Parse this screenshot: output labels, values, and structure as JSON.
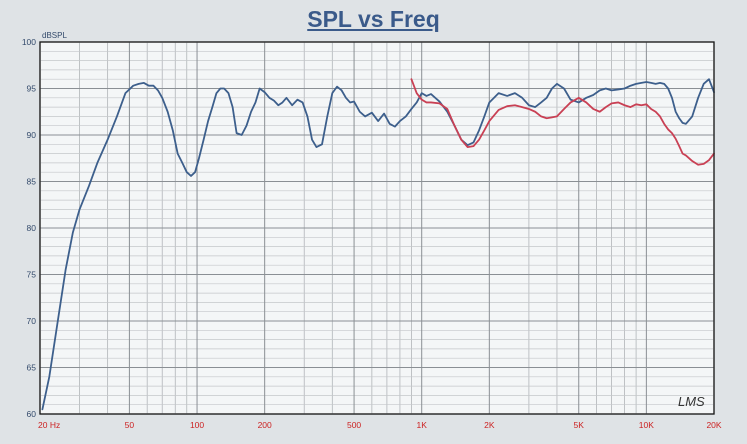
{
  "chart_data": {
    "type": "line",
    "title": "SPL vs Freq",
    "ylabel": "dBSPL",
    "xlabel": "",
    "xscale": "log",
    "xlim": [
      20,
      20000
    ],
    "ylim": [
      60,
      100
    ],
    "grid": true,
    "yticks": [
      60,
      65,
      70,
      75,
      80,
      85,
      90,
      95,
      100
    ],
    "ytick_labels": [
      "60",
      "65",
      "70",
      "75",
      "80",
      "85",
      "90",
      "95",
      "100"
    ],
    "xticks": [
      20,
      50,
      100,
      200,
      500,
      1000,
      2000,
      5000,
      10000,
      20000
    ],
    "xtick_labels": [
      "20 Hz",
      "50",
      "100",
      "200",
      "500",
      "1K",
      "2K",
      "5K",
      "10K",
      "20K"
    ],
    "watermark": "LMS",
    "series": [
      {
        "color": "#3d5f8c",
        "x": [
          20.5,
          22,
          24,
          26,
          28,
          30,
          33,
          36,
          40,
          44,
          48,
          52,
          55,
          58,
          61,
          64,
          67,
          70,
          74,
          78,
          82,
          86,
          90,
          94,
          98,
          102,
          107,
          112,
          117,
          122,
          127,
          132,
          138,
          144,
          150,
          158,
          166,
          174,
          182,
          190,
          200,
          210,
          220,
          230,
          240,
          250,
          265,
          280,
          295,
          310,
          325,
          340,
          360,
          380,
          400,
          420,
          440,
          460,
          480,
          500,
          530,
          560,
          600,
          640,
          680,
          720,
          760,
          800,
          850,
          900,
          950,
          1000,
          1050,
          1100,
          1200,
          1300,
          1400,
          1500,
          1600,
          1700,
          1800,
          1900,
          2000,
          2200,
          2400,
          2600,
          2800,
          3000,
          3200,
          3400,
          3600,
          3800,
          4000,
          4300,
          4600,
          5000,
          5400,
          5800,
          6200,
          6600,
          7000,
          7500,
          8000,
          8500,
          9000,
          9500,
          10000,
          10500,
          11000,
          11500,
          12000,
          12500,
          13000,
          13500,
          14000,
          14500,
          15000,
          16000,
          17000,
          18000,
          19000,
          20000
        ],
        "y": [
          60.5,
          64,
          70,
          75.5,
          79.5,
          82,
          84.5,
          87,
          89.5,
          92,
          94.5,
          95.3,
          95.5,
          95.6,
          95.3,
          95.3,
          94.8,
          94,
          92.5,
          90.5,
          88,
          87,
          86,
          85.6,
          86,
          87.5,
          89.5,
          91.5,
          93,
          94.5,
          95,
          95,
          94.5,
          93,
          90.2,
          90,
          91,
          92.5,
          93.5,
          95,
          94.6,
          94,
          93.7,
          93.2,
          93.5,
          94,
          93.2,
          93.8,
          93.5,
          92,
          89.5,
          88.7,
          89,
          92,
          94.5,
          95.2,
          94.8,
          94,
          93.5,
          93.6,
          92.5,
          92,
          92.4,
          91.5,
          92.3,
          91.2,
          90.9,
          91.5,
          92,
          92.8,
          93.5,
          94.5,
          94.2,
          94.4,
          93.6,
          92.5,
          91,
          89.5,
          88.9,
          89.2,
          90.5,
          92,
          93.5,
          94.5,
          94.2,
          94.5,
          94,
          93.2,
          93,
          93.5,
          94,
          95,
          95.5,
          95,
          93.8,
          93.5,
          94,
          94.3,
          94.8,
          95,
          94.8,
          94.9,
          95,
          95.3,
          95.5,
          95.6,
          95.7,
          95.6,
          95.5,
          95.6,
          95.5,
          95,
          94,
          92.5,
          91.8,
          91.3,
          91.2,
          92,
          94,
          95.5,
          96,
          94.6
        ]
      },
      {
        "color": "#c94054",
        "x": [
          900,
          950,
          1000,
          1050,
          1100,
          1200,
          1300,
          1400,
          1500,
          1600,
          1700,
          1800,
          1900,
          2000,
          2200,
          2400,
          2600,
          2800,
          3000,
          3200,
          3400,
          3600,
          3800,
          4000,
          4300,
          4600,
          5000,
          5400,
          5800,
          6200,
          6600,
          7000,
          7500,
          8000,
          8500,
          9000,
          9500,
          10000,
          10500,
          11000,
          11500,
          12000,
          12500,
          13000,
          13500,
          14000,
          14500,
          15000,
          16000,
          17000,
          18000,
          19000,
          20000
        ],
        "y": [
          96,
          94.5,
          93.8,
          93.5,
          93.5,
          93.4,
          92.8,
          91,
          89.5,
          88.7,
          88.8,
          89.5,
          90.5,
          91.5,
          92.7,
          93.1,
          93.2,
          93,
          92.8,
          92.5,
          92,
          91.8,
          91.9,
          92,
          92.8,
          93.5,
          94,
          93.5,
          92.8,
          92.5,
          93,
          93.4,
          93.5,
          93.2,
          93,
          93.3,
          93.2,
          93.3,
          92.8,
          92.5,
          92,
          91.2,
          90.6,
          90.2,
          89.6,
          88.8,
          88,
          87.8,
          87.2,
          86.8,
          86.9,
          87.3,
          88
        ]
      }
    ]
  }
}
